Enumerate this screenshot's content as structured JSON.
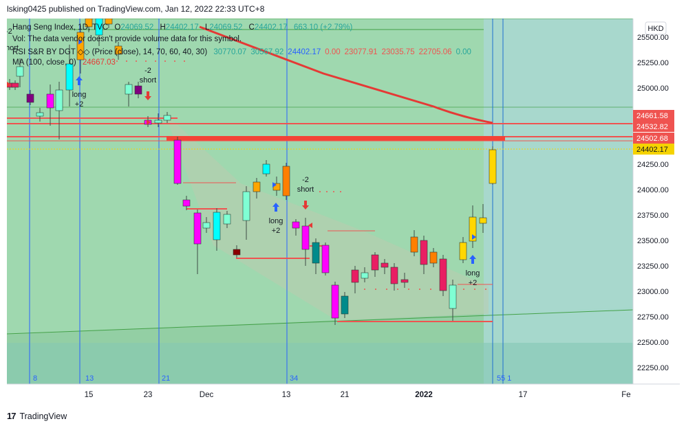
{
  "header": {
    "published": "lsking0425 published on TradingView.com, Jan 12, 2022 22:33 UTC+8"
  },
  "legend": {
    "symbol": "Hang Seng Index, 1D, TVC",
    "o_label": "O",
    "o": "24069.52",
    "h_label": "H",
    "h": "24402.17",
    "l_label": "L",
    "l": "24069.52",
    "c_label": "C",
    "c": "24402.17",
    "change": "663.10 (+2.79%)",
    "vol": "Vol: The data vendor doesn't provide volume data for this symbol.",
    "rsi_label": "RSI S&R BY DGT ◇◇ (Price (close), 14, 70, 60, 40, 30)",
    "rsi_values": [
      "30770.07",
      "30567.92",
      "24402.17",
      "0.00",
      "23077.91",
      "23035.75",
      "22705.06",
      "0.00"
    ],
    "rsi_colors": [
      "#26a69a",
      "#26a69a",
      "#2962ff",
      "#ef5350",
      "#ef5350",
      "#ef5350",
      "#ef5350",
      "#26a69a"
    ],
    "ma_label": "MA (100, close, 0)",
    "ma_value": "24667.03"
  },
  "currency": "HKD",
  "price_axis": {
    "ticks": [
      "25500.00",
      "25250.00",
      "25000.00",
      "24750.00",
      "24500.00",
      "24250.00",
      "24000.00",
      "23750.00",
      "23500.00",
      "23250.00",
      "23000.00",
      "22750.00",
      "22500.00",
      "22250.00"
    ],
    "labels": [
      {
        "text": "24661.58",
        "color": "#ef5350"
      },
      {
        "text": "24532.82",
        "color": "#ef5350"
      },
      {
        "text": "24502.68",
        "color": "#ef5350"
      },
      {
        "text": "24402.17",
        "color": "#f5d300"
      }
    ]
  },
  "time_axis": {
    "labels": [
      "15",
      "23",
      "Dec",
      "13",
      "21",
      "2022",
      "17",
      "Fe"
    ]
  },
  "bar_counts": [
    "8",
    "13",
    "21",
    "34",
    "55 1"
  ],
  "signals": [
    {
      "kind": "long",
      "text1": "long",
      "text2": "+2",
      "label": "long-signal-1"
    },
    {
      "kind": "short",
      "text1": "-2",
      "text2": "short",
      "label": "short-signal-1"
    },
    {
      "kind": "long",
      "text1": "long",
      "text2": "+2",
      "label": "long-signal-2"
    },
    {
      "kind": "short",
      "text1": "-2",
      "text2": "short",
      "label": "short-signal-2"
    },
    {
      "kind": "long",
      "text1": "long",
      "text2": "+2",
      "label": "long-signal-3"
    }
  ],
  "partial_labels": {
    "top_left_short": "hort",
    "top_left_count": "-2"
  },
  "colors": {
    "bg_green": "#a5d6a7",
    "ma_line": "#e53935",
    "level_red": "#ef5350",
    "fib_blue": "#2962ff"
  },
  "footer": {
    "brand": "TradingView"
  }
}
